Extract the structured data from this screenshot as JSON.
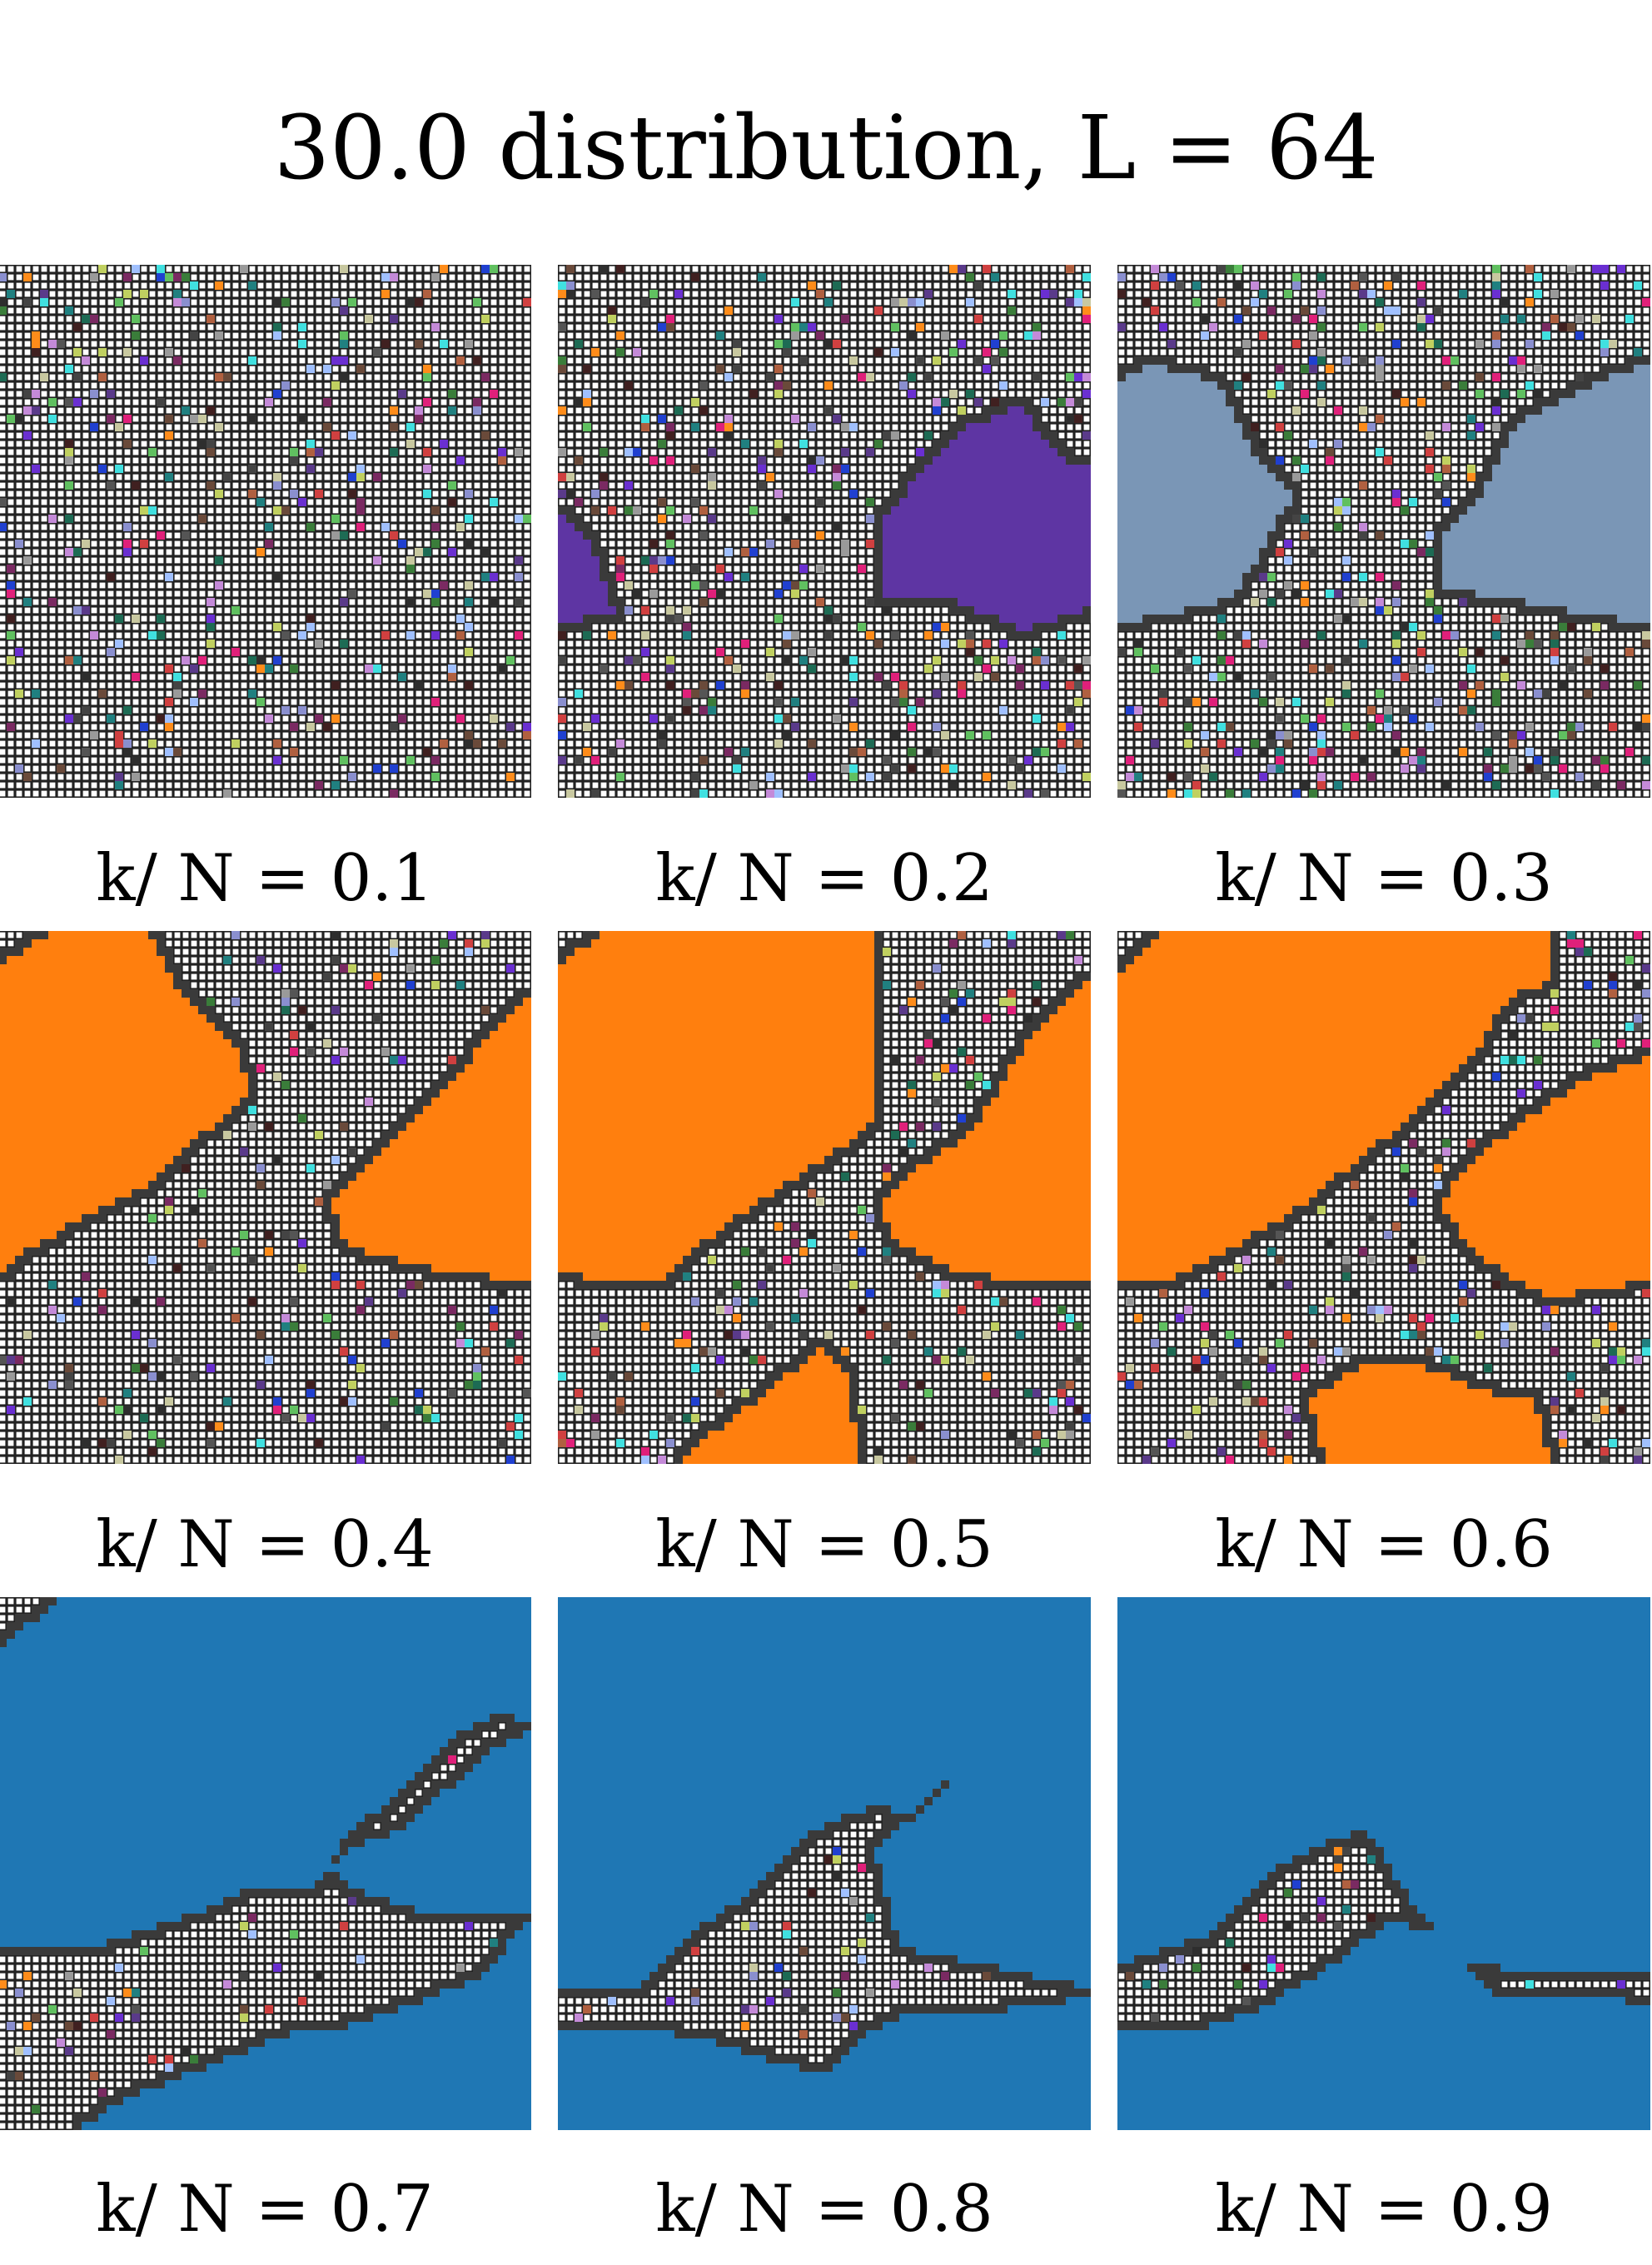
{
  "figure": {
    "title": "30.0 distribution, L = 64"
  },
  "panels": [
    {
      "label": "k/ N = 0.1",
      "k_over_N": 0.1,
      "giant_cluster_color": null
    },
    {
      "label": "k/ N = 0.2",
      "k_over_N": 0.2,
      "giant_cluster_color": "#5e35a3"
    },
    {
      "label": "k/ N = 0.3",
      "k_over_N": 0.3,
      "giant_cluster_color": "#7a96b6"
    },
    {
      "label": "k/ N = 0.4",
      "k_over_N": 0.4,
      "giant_cluster_color": "#ff7f0e"
    },
    {
      "label": "k/ N = 0.5",
      "k_over_N": 0.5,
      "giant_cluster_color": "#ff7f0e"
    },
    {
      "label": "k/ N = 0.6",
      "k_over_N": 0.6,
      "giant_cluster_color": "#ff7f0e"
    },
    {
      "label": "k/ N = 0.7",
      "k_over_N": 0.7,
      "giant_cluster_color": "#1f77b4"
    },
    {
      "label": "k/ N = 0.8",
      "k_over_N": 0.8,
      "giant_cluster_color": "#1f77b4"
    },
    {
      "label": "k/ N = 0.9",
      "k_over_N": 0.9,
      "giant_cluster_color": "#1f77b4"
    }
  ],
  "colors": {
    "empty_site": "#ffffff",
    "grid_line": "#222222",
    "boundary": "#3a3a3a"
  }
}
